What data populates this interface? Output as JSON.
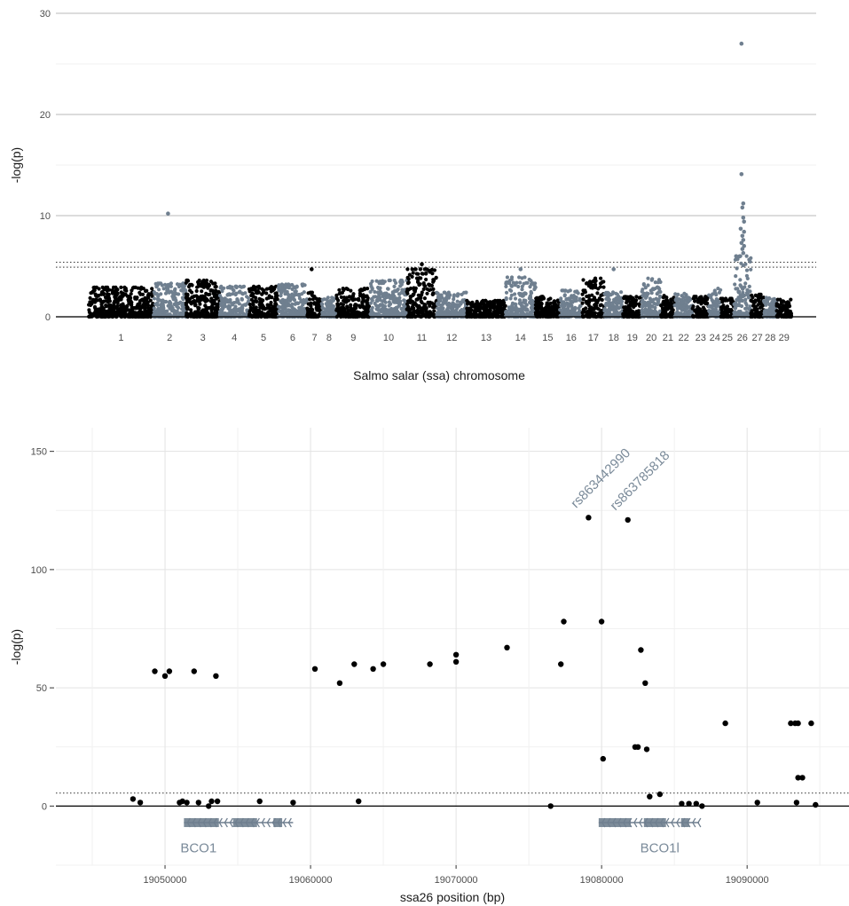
{
  "chart_data": [
    {
      "type": "scatter",
      "xlabel": "Salmo salar (ssa) chromosome",
      "ylabel": "-log(p)",
      "ylim": [
        0,
        30
      ],
      "yticks": [
        "0",
        "10",
        "20",
        "30"
      ],
      "grid": "horizontal",
      "colors": {
        "odd": "#000000",
        "even": "#6f7f8f"
      },
      "threshold_lines": [
        4.9,
        5.4
      ],
      "chromosomes": [
        {
          "label": "1",
          "width": 8.0,
          "peak": 2.9
        },
        {
          "label": "2",
          "width": 4.0,
          "peak": 3.3
        },
        {
          "label": "3",
          "width": 4.2,
          "peak": 3.6
        },
        {
          "label": "4",
          "width": 3.6,
          "peak": 3.0
        },
        {
          "label": "5",
          "width": 3.6,
          "peak": 3.0
        },
        {
          "label": "6",
          "width": 3.6,
          "peak": 3.2
        },
        {
          "label": "7",
          "width": 1.8,
          "peak": 2.4
        },
        {
          "label": "8",
          "width": 1.8,
          "peak": 1.9
        },
        {
          "label": "9",
          "width": 4.2,
          "peak": 2.8
        },
        {
          "label": "10",
          "width": 4.5,
          "peak": 3.6
        },
        {
          "label": "11",
          "width": 3.7,
          "peak": 4.7
        },
        {
          "label": "12",
          "width": 3.7,
          "peak": 2.4
        },
        {
          "label": "13",
          "width": 4.8,
          "peak": 1.6
        },
        {
          "label": "14",
          "width": 3.7,
          "peak": 3.9
        },
        {
          "label": "15",
          "width": 3.0,
          "peak": 2.0
        },
        {
          "label": "16",
          "width": 2.8,
          "peak": 2.6
        },
        {
          "label": "17",
          "width": 2.7,
          "peak": 3.8
        },
        {
          "label": "18",
          "width": 2.3,
          "peak": 2.5
        },
        {
          "label": "19",
          "width": 2.3,
          "peak": 2.0
        },
        {
          "label": "20",
          "width": 2.4,
          "peak": 3.8
        },
        {
          "label": "21",
          "width": 1.7,
          "peak": 2.1
        },
        {
          "label": "22",
          "width": 2.2,
          "peak": 2.3
        },
        {
          "label": "23",
          "width": 2.0,
          "peak": 2.0
        },
        {
          "label": "24",
          "width": 1.5,
          "peak": 2.8
        },
        {
          "label": "25",
          "width": 1.6,
          "peak": 1.8
        },
        {
          "label": "26",
          "width": 2.1,
          "peak": 6.0
        },
        {
          "label": "27",
          "width": 1.6,
          "peak": 2.2
        },
        {
          "label": "28",
          "width": 1.6,
          "peak": 1.9
        },
        {
          "label": "29",
          "width": 1.8,
          "peak": 1.7
        }
      ],
      "outliers": [
        {
          "chrom": "2",
          "pos": 0.45,
          "y": 10.2
        },
        {
          "chrom": "7",
          "pos": 0.3,
          "y": 4.7
        },
        {
          "chrom": "11",
          "pos": 0.5,
          "y": 5.2
        },
        {
          "chrom": "14",
          "pos": 0.5,
          "y": 4.7
        },
        {
          "chrom": "18",
          "pos": 0.5,
          "y": 4.7
        },
        {
          "chrom": "26",
          "pos": 0.45,
          "y": 27.0
        },
        {
          "chrom": "26",
          "pos": 0.45,
          "y": 14.1
        },
        {
          "chrom": "26",
          "pos": 0.55,
          "y": 11.2
        },
        {
          "chrom": "26",
          "pos": 0.5,
          "y": 10.8
        },
        {
          "chrom": "26",
          "pos": 0.55,
          "y": 9.8
        },
        {
          "chrom": "26",
          "pos": 0.6,
          "y": 9.4
        },
        {
          "chrom": "26",
          "pos": 0.4,
          "y": 8.7
        },
        {
          "chrom": "26",
          "pos": 0.6,
          "y": 8.4
        },
        {
          "chrom": "26",
          "pos": 0.5,
          "y": 8.0
        },
        {
          "chrom": "26",
          "pos": 0.55,
          "y": 7.6
        },
        {
          "chrom": "26",
          "pos": 0.45,
          "y": 7.3
        },
        {
          "chrom": "26",
          "pos": 0.6,
          "y": 7.0
        },
        {
          "chrom": "26",
          "pos": 0.5,
          "y": 6.7
        },
        {
          "chrom": "26",
          "pos": 0.55,
          "y": 6.3
        }
      ]
    },
    {
      "type": "scatter",
      "xlabel": "ssa26 position (bp)",
      "ylabel": "-log(p)",
      "xlim": [
        19042500,
        19097000
      ],
      "ylim": [
        -25,
        160
      ],
      "xticks": [
        19050000,
        19060000,
        19070000,
        19080000,
        19090000
      ],
      "xtick_labels": [
        "19050000",
        "19060000",
        "19070000",
        "19080000",
        "19090000"
      ],
      "yticks": [
        0,
        50,
        100,
        150
      ],
      "ytick_labels": [
        "0",
        "50",
        "100",
        "150"
      ],
      "grid": true,
      "threshold_line": 5.5,
      "points": [
        {
          "x": 19047800,
          "y": 3
        },
        {
          "x": 19048300,
          "y": 1.5
        },
        {
          "x": 19049300,
          "y": 57
        },
        {
          "x": 19050000,
          "y": 55
        },
        {
          "x": 19050300,
          "y": 57
        },
        {
          "x": 19051000,
          "y": 1.5
        },
        {
          "x": 19051200,
          "y": 2
        },
        {
          "x": 19051500,
          "y": 1.5
        },
        {
          "x": 19052000,
          "y": 57
        },
        {
          "x": 19052300,
          "y": 1.5
        },
        {
          "x": 19053000,
          "y": 0
        },
        {
          "x": 19053200,
          "y": 2
        },
        {
          "x": 19053500,
          "y": 55
        },
        {
          "x": 19053600,
          "y": 2
        },
        {
          "x": 19056500,
          "y": 2
        },
        {
          "x": 19058800,
          "y": 1.5
        },
        {
          "x": 19060300,
          "y": 58
        },
        {
          "x": 19062000,
          "y": 52
        },
        {
          "x": 19063000,
          "y": 60
        },
        {
          "x": 19063300,
          "y": 2
        },
        {
          "x": 19064300,
          "y": 58
        },
        {
          "x": 19065000,
          "y": 60
        },
        {
          "x": 19068200,
          "y": 60
        },
        {
          "x": 19070000,
          "y": 64
        },
        {
          "x": 19070000,
          "y": 61
        },
        {
          "x": 19073500,
          "y": 67
        },
        {
          "x": 19076500,
          "y": 0
        },
        {
          "x": 19077200,
          "y": 60
        },
        {
          "x": 19077400,
          "y": 78
        },
        {
          "x": 19079100,
          "y": 122
        },
        {
          "x": 19080000,
          "y": 78
        },
        {
          "x": 19080100,
          "y": 20
        },
        {
          "x": 19081800,
          "y": 121
        },
        {
          "x": 19082300,
          "y": 25
        },
        {
          "x": 19082500,
          "y": 25
        },
        {
          "x": 19082700,
          "y": 66
        },
        {
          "x": 19083000,
          "y": 52
        },
        {
          "x": 19083100,
          "y": 24
        },
        {
          "x": 19083300,
          "y": 4
        },
        {
          "x": 19084000,
          "y": 5
        },
        {
          "x": 19085500,
          "y": 1
        },
        {
          "x": 19086000,
          "y": 1
        },
        {
          "x": 19086500,
          "y": 1
        },
        {
          "x": 19086900,
          "y": 0
        },
        {
          "x": 19088500,
          "y": 35
        },
        {
          "x": 19090700,
          "y": 1.5
        },
        {
          "x": 19093000,
          "y": 35
        },
        {
          "x": 19093300,
          "y": 35
        },
        {
          "x": 19093400,
          "y": 1.5
        },
        {
          "x": 19093500,
          "y": 12
        },
        {
          "x": 19093800,
          "y": 12
        },
        {
          "x": 19093500,
          "y": 35
        },
        {
          "x": 19094400,
          "y": 35
        },
        {
          "x": 19094700,
          "y": 0.5
        }
      ],
      "annotations": [
        {
          "text": "rs863442990",
          "x": 19079100,
          "y": 122
        },
        {
          "text": "rs863785818",
          "x": 19081800,
          "y": 121
        }
      ],
      "genes": [
        {
          "name": "BCO1",
          "start": 19051300,
          "end": 19058800,
          "direction": "left",
          "label_x": 19052300
        },
        {
          "name": "BCO1l",
          "start": 19079800,
          "end": 19086700,
          "direction": "left",
          "label_x": 19084000
        }
      ]
    }
  ]
}
